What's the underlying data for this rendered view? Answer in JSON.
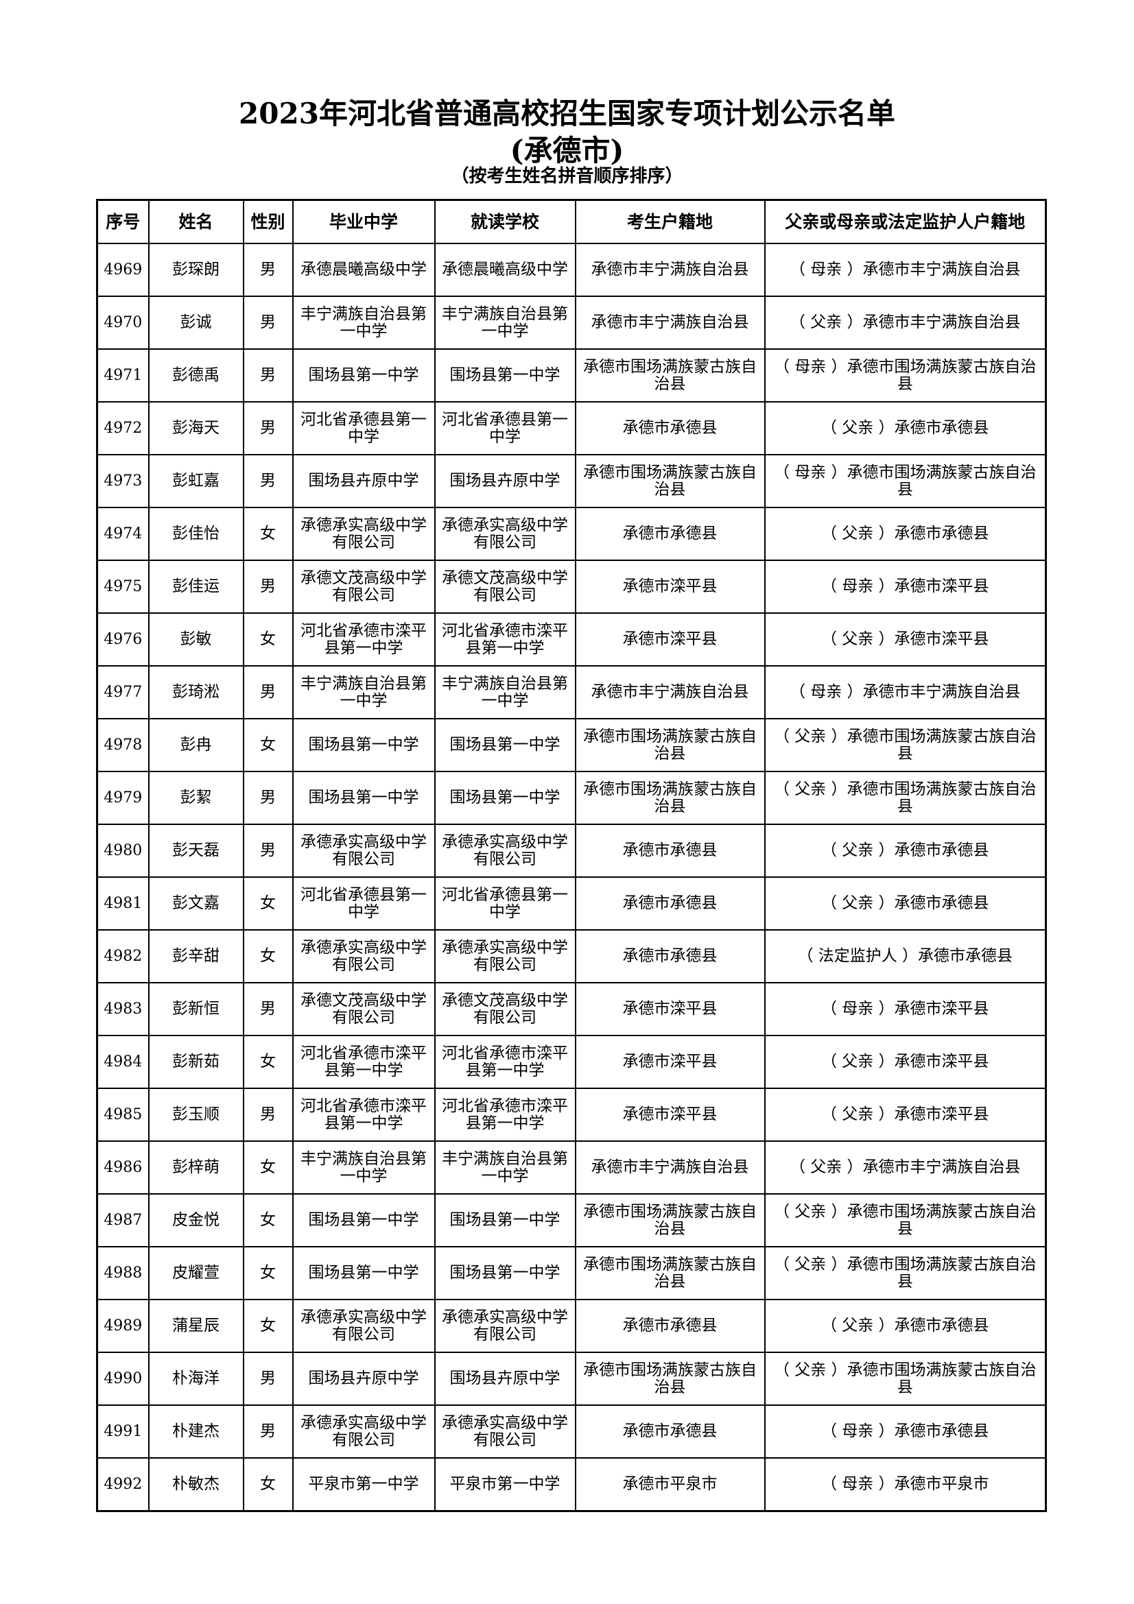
{
  "title": "2023年河北省普通高校招生国家专项计划公示名单",
  "subtitle_city": "(承德市)",
  "subtitle_note": "（按考生姓名拼音顺序排序）",
  "columns": [
    "序号",
    "姓名",
    "性别",
    "毕业中学",
    "就读学校",
    "考生户籍地",
    "父亲或母亲或法定监护人户籍地"
  ],
  "rows": [
    [
      "4969",
      "彭琛朗",
      "男",
      "承德晨曦高级中学",
      "承德晨曦高级中学",
      "承德市丰宁满族自治县",
      "（ 母亲 ）承德市丰宁满族自治县"
    ],
    [
      "4970",
      "彭诚",
      "男",
      "丰宁满族自治县第一中学",
      "丰宁满族自治县第一中学",
      "承德市丰宁满族自治县",
      "（ 父亲 ）承德市丰宁满族自治县"
    ],
    [
      "4971",
      "彭德禹",
      "男",
      "围场县第一中学",
      "围场县第一中学",
      "承德市围场满族蒙古族自治县",
      "（ 母亲 ）承德市围场满族蒙古族自治县"
    ],
    [
      "4972",
      "彭海天",
      "男",
      "河北省承德县第一中学",
      "河北省承德县第一中学",
      "承德市承德县",
      "（ 父亲 ）承德市承德县"
    ],
    [
      "4973",
      "彭虹嘉",
      "男",
      "围场县卉原中学",
      "围场县卉原中学",
      "承德市围场满族蒙古族自治县",
      "（ 母亲 ）承德市围场满族蒙古族自治县"
    ],
    [
      "4974",
      "彭佳怡",
      "女",
      "承德承实高级中学有限公司",
      "承德承实高级中学有限公司",
      "承德市承德县",
      "（ 父亲 ）承德市承德县"
    ],
    [
      "4975",
      "彭佳运",
      "男",
      "承德文茂高级中学有限公司",
      "承德文茂高级中学有限公司",
      "承德市滦平县",
      "（ 母亲 ）承德市滦平县"
    ],
    [
      "4976",
      "彭敏",
      "女",
      "河北省承德市滦平县第一中学",
      "河北省承德市滦平县第一中学",
      "承德市滦平县",
      "（ 父亲 ）承德市滦平县"
    ],
    [
      "4977",
      "彭琦淞",
      "男",
      "丰宁满族自治县第一中学",
      "丰宁满族自治县第一中学",
      "承德市丰宁满族自治县",
      "（ 母亲 ）承德市丰宁满族自治县"
    ],
    [
      "4978",
      "彭冉",
      "女",
      "围场县第一中学",
      "围场县第一中学",
      "承德市围场满族蒙古族自治县",
      "（ 父亲 ）承德市围场满族蒙古族自治县"
    ],
    [
      "4979",
      "彭絜",
      "男",
      "围场县第一中学",
      "围场县第一中学",
      "承德市围场满族蒙古族自治县",
      "（ 父亲 ）承德市围场满族蒙古族自治县"
    ],
    [
      "4980",
      "彭天磊",
      "男",
      "承德承实高级中学有限公司",
      "承德承实高级中学有限公司",
      "承德市承德县",
      "（ 父亲 ）承德市承德县"
    ],
    [
      "4981",
      "彭文嘉",
      "女",
      "河北省承德县第一中学",
      "河北省承德县第一中学",
      "承德市承德县",
      "（ 父亲 ）承德市承德县"
    ],
    [
      "4982",
      "彭辛甜",
      "女",
      "承德承实高级中学有限公司",
      "承德承实高级中学有限公司",
      "承德市承德县",
      "（ 法定监护人 ）承德市承德县"
    ],
    [
      "4983",
      "彭新恒",
      "男",
      "承德文茂高级中学有限公司",
      "承德文茂高级中学有限公司",
      "承德市滦平县",
      "（ 母亲 ）承德市滦平县"
    ],
    [
      "4984",
      "彭新茹",
      "女",
      "河北省承德市滦平县第一中学",
      "河北省承德市滦平县第一中学",
      "承德市滦平县",
      "（ 父亲 ）承德市滦平县"
    ],
    [
      "4985",
      "彭玉顺",
      "男",
      "河北省承德市滦平县第一中学",
      "河北省承德市滦平县第一中学",
      "承德市滦平县",
      "（ 父亲 ）承德市滦平县"
    ],
    [
      "4986",
      "彭梓萌",
      "女",
      "丰宁满族自治县第一中学",
      "丰宁满族自治县第一中学",
      "承德市丰宁满族自治县",
      "（ 父亲 ）承德市丰宁满族自治县"
    ],
    [
      "4987",
      "皮金悦",
      "女",
      "围场县第一中学",
      "围场县第一中学",
      "承德市围场满族蒙古族自治县",
      "（ 父亲 ）承德市围场满族蒙古族自治县"
    ],
    [
      "4988",
      "皮耀萱",
      "女",
      "围场县第一中学",
      "围场县第一中学",
      "承德市围场满族蒙古族自治县",
      "（ 父亲 ）承德市围场满族蒙古族自治县"
    ],
    [
      "4989",
      "蒲星辰",
      "女",
      "承德承实高级中学有限公司",
      "承德承实高级中学有限公司",
      "承德市承德县",
      "（ 父亲 ）承德市承德县"
    ],
    [
      "4990",
      "朴海洋",
      "男",
      "围场县卉原中学",
      "围场县卉原中学",
      "承德市围场满族蒙古族自治县",
      "（ 父亲 ）承德市围场满族蒙古族自治县"
    ],
    [
      "4991",
      "朴建杰",
      "男",
      "承德承实高级中学有限公司",
      "承德承实高级中学有限公司",
      "承德市承德县",
      "（ 母亲 ）承德市承德县"
    ],
    [
      "4992",
      "朴敏杰",
      "女",
      "平泉市第一中学",
      "平泉市第一中学",
      "承德市平泉市",
      "（ 母亲 ）承德市平泉市"
    ]
  ]
}
